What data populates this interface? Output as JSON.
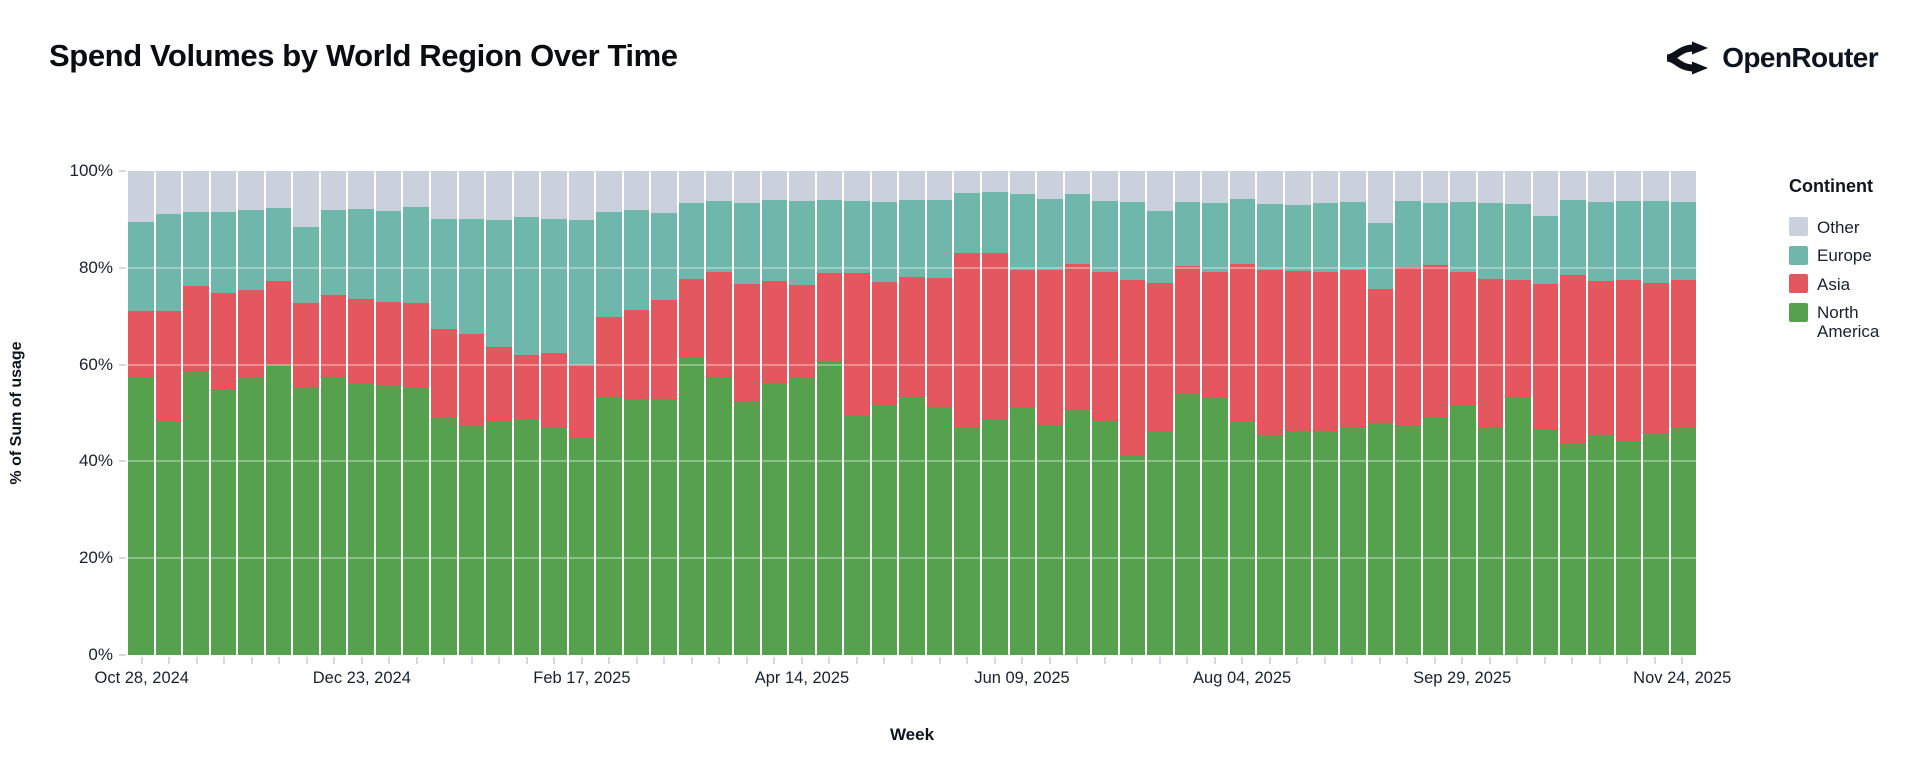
{
  "header": {
    "title": "Spend Volumes by World Region Over Time",
    "brand": "OpenRouter"
  },
  "chart_data": {
    "type": "bar",
    "stacked": "percent",
    "title": "Spend Volumes by World Region Over Time",
    "xlabel": "Week",
    "ylabel": "% of Sum of usage",
    "ylim": [
      0,
      100
    ],
    "grid": "subtle horizontal lines every 20%",
    "legend_position": "right",
    "n_bars": 57,
    "y_ticks": [
      "0%",
      "20%",
      "40%",
      "60%",
      "80%",
      "100%"
    ],
    "x_axis": {
      "tick_labels": [
        "Oct 28, 2024",
        "Dec 23, 2024",
        "Feb 17, 2025",
        "Apr 14, 2025",
        "Jun 09, 2025",
        "Aug 04, 2025",
        "Sep 29, 2025",
        "Nov 24, 2025"
      ],
      "tick_label_indices": [
        0,
        8,
        16,
        24,
        32,
        40,
        48,
        56
      ],
      "minor_tick_every_bar": true
    },
    "legend": {
      "title": "Continent",
      "entries": [
        {
          "label": "Other",
          "color": "#CBD0DD"
        },
        {
          "label": "Europe",
          "color": "#6FB6AB"
        },
        {
          "label": "Asia",
          "color": "#E4575E"
        },
        {
          "label": "North America",
          "color": "#55A14E"
        }
      ]
    },
    "series": [
      {
        "name": "North America",
        "color": "#55A14E",
        "values": [
          57.5,
          48.3,
          58.7,
          54.8,
          57.3,
          60.0,
          55.3,
          57.5,
          56.0,
          55.6,
          55.1,
          49.0,
          47.3,
          48.3,
          48.6,
          46.8,
          44.9,
          53.2,
          52.7,
          52.9,
          61.5,
          57.5,
          52.2,
          56.1,
          57.3,
          60.8,
          49.3,
          51.7,
          53.4,
          51.3,
          47.1,
          48.6,
          51.1,
          47.5,
          50.7,
          48.3,
          41.2,
          46.1,
          54.0,
          53.1,
          48.2,
          45.4,
          46.3,
          46.3,
          47.2,
          48.0,
          47.4,
          49.1,
          51.6,
          47.2,
          53.3,
          46.7,
          43.8,
          45.5,
          44.3,
          45.7,
          47.1
        ]
      },
      {
        "name": "Asia",
        "color": "#E4575E",
        "values": [
          13.5,
          22.7,
          17.5,
          20.0,
          18.2,
          17.3,
          17.4,
          16.8,
          17.6,
          17.4,
          17.6,
          18.4,
          19.1,
          15.4,
          13.3,
          15.6,
          15.0,
          16.7,
          18.5,
          20.4,
          16.2,
          21.7,
          24.5,
          21.1,
          19.2,
          18.2,
          29.6,
          25.3,
          24.8,
          26.6,
          35.9,
          34.4,
          28.5,
          32.1,
          30.0,
          30.9,
          36.3,
          30.7,
          26.4,
          26.1,
          32.6,
          34.2,
          33.1,
          32.9,
          32.3,
          27.7,
          32.7,
          31.5,
          27.6,
          30.5,
          24.2,
          29.9,
          34.8,
          31.8,
          33.2,
          31.2,
          30.4
        ]
      },
      {
        "name": "Europe",
        "color": "#6FB6AB",
        "values": [
          18.5,
          20.2,
          15.3,
          16.7,
          16.5,
          15.0,
          15.7,
          17.7,
          18.5,
          18.7,
          19.8,
          22.6,
          23.7,
          26.1,
          28.6,
          27.7,
          29.9,
          21.7,
          20.8,
          18.1,
          15.7,
          14.6,
          16.7,
          16.8,
          17.3,
          15.1,
          14.9,
          16.6,
          15.8,
          16.2,
          12.4,
          12.6,
          15.7,
          14.6,
          14.6,
          14.6,
          16.1,
          15.0,
          13.1,
          14.1,
          13.4,
          13.6,
          13.6,
          14.1,
          14.1,
          13.5,
          13.7,
          12.8,
          14.3,
          15.6,
          15.6,
          14.2,
          15.4,
          16.3,
          16.3,
          16.9,
          16.0
        ]
      },
      {
        "name": "Other",
        "color": "#CBD0DD",
        "values": [
          10.5,
          8.8,
          8.5,
          8.5,
          8.0,
          7.7,
          11.6,
          8.0,
          7.9,
          8.3,
          7.5,
          10.0,
          9.9,
          10.2,
          9.5,
          9.9,
          10.2,
          8.4,
          8.0,
          8.6,
          6.6,
          6.2,
          6.6,
          6.0,
          6.2,
          5.9,
          6.2,
          6.4,
          6.0,
          5.9,
          4.6,
          4.4,
          4.7,
          5.8,
          4.7,
          6.2,
          6.4,
          8.2,
          6.5,
          6.7,
          5.8,
          6.8,
          7.0,
          6.7,
          6.4,
          10.8,
          6.2,
          6.6,
          6.5,
          6.7,
          6.9,
          9.2,
          6.0,
          6.4,
          6.2,
          6.2,
          6.5
        ]
      }
    ]
  }
}
